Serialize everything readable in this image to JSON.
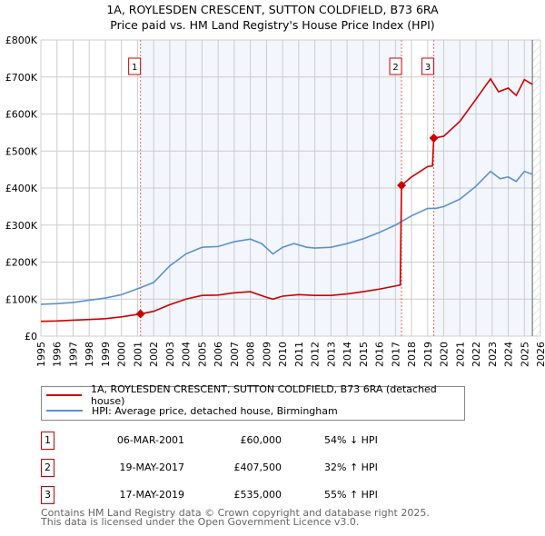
{
  "chart_data": {
    "type": "line",
    "title": "1A, ROYLESDEN CRESCENT, SUTTON COLDFIELD, B73 6RA",
    "subtitle": "Price paid vs. HM Land Registry's House Price Index (HPI)",
    "xlim": [
      1995,
      2026
    ],
    "ylim": [
      0,
      800000
    ],
    "x_ticks": [
      "1995",
      "1996",
      "1997",
      "1998",
      "1999",
      "2000",
      "2001",
      "2002",
      "2003",
      "2004",
      "2005",
      "2006",
      "2007",
      "2008",
      "2009",
      "2010",
      "2011",
      "2012",
      "2013",
      "2014",
      "2015",
      "2016",
      "2017",
      "2018",
      "2019",
      "2020",
      "2021",
      "2022",
      "2023",
      "2024",
      "2025",
      "2026"
    ],
    "y_ticks": [
      {
        "v": 0,
        "label": "£0"
      },
      {
        "v": 100000,
        "label": "£100K"
      },
      {
        "v": 200000,
        "label": "£200K"
      },
      {
        "v": 300000,
        "label": "£300K"
      },
      {
        "v": 400000,
        "label": "£400K"
      },
      {
        "v": 500000,
        "label": "£500K"
      },
      {
        "v": 600000,
        "label": "£600K"
      },
      {
        "v": 700000,
        "label": "£700K"
      },
      {
        "v": 800000,
        "label": "£800K"
      }
    ],
    "grid": true,
    "series": [
      {
        "name": "1A, ROYLESDEN CRESCENT, SUTTON COLDFIELD, B73 6RA (detached house)",
        "color": "#cc0000",
        "points": [
          [
            1995,
            40000
          ],
          [
            1996,
            41000
          ],
          [
            1997,
            43000
          ],
          [
            1998,
            45000
          ],
          [
            1999,
            47000
          ],
          [
            2000,
            52000
          ],
          [
            2001.18,
            60000
          ],
          [
            2002,
            67000
          ],
          [
            2003,
            85000
          ],
          [
            2004,
            100000
          ],
          [
            2005,
            110000
          ],
          [
            2006,
            111000
          ],
          [
            2007,
            117000
          ],
          [
            2008,
            120000
          ],
          [
            2009,
            105000
          ],
          [
            2009.4,
            100000
          ],
          [
            2010,
            108000
          ],
          [
            2011,
            112000
          ],
          [
            2012,
            110000
          ],
          [
            2013,
            110000
          ],
          [
            2014,
            114000
          ],
          [
            2015,
            120000
          ],
          [
            2016,
            127000
          ],
          [
            2017.3,
            138000
          ],
          [
            2017.38,
            407500
          ],
          [
            2018,
            430000
          ],
          [
            2019,
            458000
          ],
          [
            2019.3,
            460000
          ],
          [
            2019.38,
            535000
          ],
          [
            2020,
            540000
          ],
          [
            2021,
            580000
          ],
          [
            2022,
            640000
          ],
          [
            2022.9,
            695000
          ],
          [
            2023.4,
            660000
          ],
          [
            2024,
            670000
          ],
          [
            2024.5,
            650000
          ],
          [
            2025,
            693000
          ],
          [
            2025.5,
            680000
          ]
        ]
      },
      {
        "name": "HPI: Average price, detached house, Birmingham",
        "color": "#5b8fd4",
        "points": [
          [
            1995,
            86000
          ],
          [
            1996,
            88000
          ],
          [
            1997,
            91000
          ],
          [
            1998,
            97000
          ],
          [
            1999,
            103000
          ],
          [
            2000,
            112000
          ],
          [
            2001,
            128000
          ],
          [
            2002,
            145000
          ],
          [
            2003,
            190000
          ],
          [
            2004,
            222000
          ],
          [
            2005,
            240000
          ],
          [
            2006,
            242000
          ],
          [
            2007,
            255000
          ],
          [
            2008,
            262000
          ],
          [
            2008.7,
            250000
          ],
          [
            2009.4,
            222000
          ],
          [
            2010,
            240000
          ],
          [
            2010.7,
            250000
          ],
          [
            2011.5,
            240000
          ],
          [
            2012,
            238000
          ],
          [
            2013,
            240000
          ],
          [
            2014,
            250000
          ],
          [
            2015,
            263000
          ],
          [
            2016,
            280000
          ],
          [
            2017,
            300000
          ],
          [
            2017.4,
            310000
          ],
          [
            2018,
            325000
          ],
          [
            2019,
            345000
          ],
          [
            2019.5,
            345000
          ],
          [
            2020,
            350000
          ],
          [
            2021,
            370000
          ],
          [
            2022,
            405000
          ],
          [
            2022.9,
            445000
          ],
          [
            2023.5,
            425000
          ],
          [
            2024,
            430000
          ],
          [
            2024.5,
            418000
          ],
          [
            2025,
            445000
          ],
          [
            2025.5,
            437000
          ]
        ]
      }
    ],
    "sales": [
      {
        "id": "1",
        "x": 2001.18,
        "y": 60000
      },
      {
        "id": "2",
        "x": 2017.38,
        "y": 407500
      },
      {
        "id": "3",
        "x": 2019.38,
        "y": 535000
      }
    ],
    "data_end": 2025.5,
    "legend_position": "below"
  },
  "legend": {
    "property": "1A, ROYLESDEN CRESCENT, SUTTON COLDFIELD, B73 6RA (detached house)",
    "hpi": "HPI: Average price, detached house, Birmingham"
  },
  "transactions": [
    {
      "num": "1",
      "date": "06-MAR-2001",
      "price": "£60,000",
      "hpi": "54% ↓ HPI"
    },
    {
      "num": "2",
      "date": "19-MAY-2017",
      "price": "£407,500",
      "hpi": "32% ↑ HPI"
    },
    {
      "num": "3",
      "date": "17-MAY-2019",
      "price": "£535,000",
      "hpi": "55% ↑ HPI"
    }
  ],
  "footer": {
    "line1": "Contains HM Land Registry data © Crown copyright and database right 2025.",
    "line2": "This data is licensed under the Open Government Licence v3.0."
  }
}
